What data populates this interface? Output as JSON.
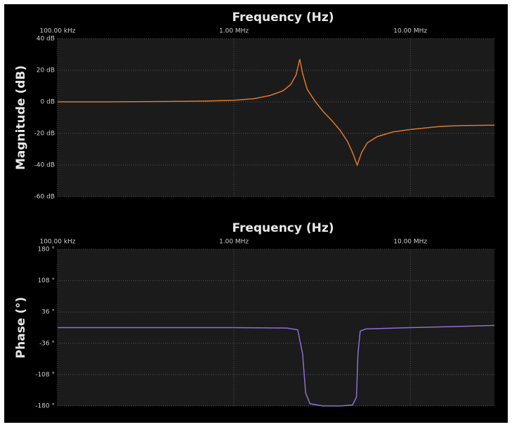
{
  "chart_data": [
    {
      "type": "line",
      "title": "Frequency (Hz)",
      "ylabel": "Magnitude (dB)",
      "xscale": "log",
      "grid": true,
      "color": "#e0782a",
      "xlim": [
        100000,
        30000000
      ],
      "xticks": [
        {
          "value": 100000,
          "label": "100.00 kHz"
        },
        {
          "value": 1000000,
          "label": "1.00 MHz"
        },
        {
          "value": 10000000,
          "label": "10.00 MHz"
        }
      ],
      "ylim": [
        -60,
        40
      ],
      "yticks": [
        {
          "value": 40,
          "label": "40 dB"
        },
        {
          "value": 20,
          "label": "20 dB"
        },
        {
          "value": 0,
          "label": "0 dB"
        },
        {
          "value": -20,
          "label": "-20 dB"
        },
        {
          "value": -40,
          "label": "-40 dB"
        },
        {
          "value": -60,
          "label": "-60 dB"
        }
      ],
      "x": [
        100000,
        200000,
        400000,
        700000,
        1000000,
        1300000,
        1600000,
        1900000,
        2100000,
        2250000,
        2360000,
        2450000,
        2600000,
        2900000,
        3200000,
        3600000,
        4000000,
        4400000,
        4700000,
        5000000,
        5300000,
        5700000,
        6500000,
        8000000,
        10000000,
        15000000,
        20000000,
        30000000
      ],
      "values": [
        0,
        0,
        0.2,
        0.5,
        1,
        2,
        4,
        7,
        11,
        17,
        27,
        18,
        8,
        0,
        -6,
        -12,
        -18,
        -25,
        -32,
        -40,
        -32,
        -26,
        -22,
        -19,
        -17.5,
        -15.5,
        -15,
        -14.8
      ]
    },
    {
      "type": "line",
      "title": "Frequency (Hz)",
      "ylabel": "Phase (°)",
      "xscale": "log",
      "grid": true,
      "color": "#8a70d6",
      "xlim": [
        100000,
        30000000
      ],
      "xticks": [
        {
          "value": 100000,
          "label": "100.00 kHz"
        },
        {
          "value": 1000000,
          "label": "1.00 MHz"
        },
        {
          "value": 10000000,
          "label": "10.00 MHz"
        }
      ],
      "ylim": [
        -180,
        180
      ],
      "yticks": [
        {
          "value": 180,
          "label": "180 °"
        },
        {
          "value": 108,
          "label": "108 °"
        },
        {
          "value": 36,
          "label": "36 °"
        },
        {
          "value": -36,
          "label": "-36 °"
        },
        {
          "value": -108,
          "label": "-108 °"
        },
        {
          "value": -180,
          "label": "-180 °"
        }
      ],
      "x": [
        100000,
        1000000,
        2000000,
        2300000,
        2450000,
        2550000,
        2700000,
        3200000,
        4000000,
        4700000,
        4950000,
        5050000,
        5200000,
        5600000,
        10000000,
        20000000,
        30000000
      ],
      "values": [
        0,
        0,
        -1,
        -5,
        -60,
        -150,
        -175,
        -180,
        -180,
        -178,
        -160,
        -60,
        -8,
        -3,
        0,
        3,
        5
      ]
    }
  ]
}
